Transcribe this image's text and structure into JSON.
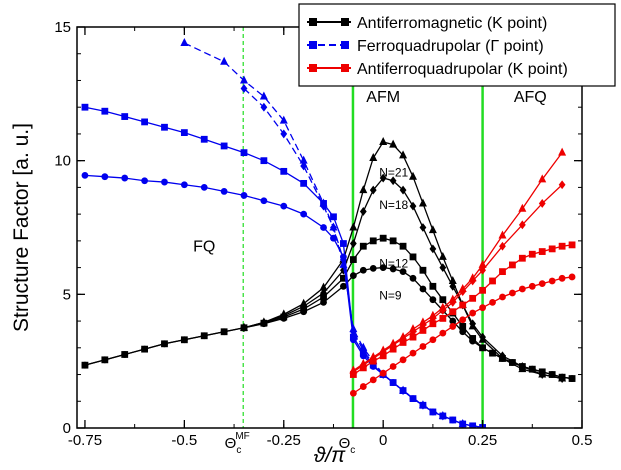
{
  "chart_data": {
    "type": "line",
    "title": "",
    "xlabel": "ϑ/π",
    "ylabel": "Structure Factor [a. u.]",
    "xlim": [
      -0.77,
      0.5
    ],
    "ylim": [
      0,
      15
    ],
    "grid": false,
    "legend_position": "top-right",
    "x_ticks": [
      {
        "value": -0.75,
        "label": "-0.75"
      },
      {
        "value": -0.5,
        "label": "-0.5"
      },
      {
        "value": -0.25,
        "label": "-0.25"
      },
      {
        "value": 0,
        "label": "0"
      },
      {
        "value": 0.25,
        "label": "0.25"
      },
      {
        "value": 0.5,
        "label": "0.5"
      }
    ],
    "x_special_ticks": [
      {
        "value": -0.352,
        "base": "Θ",
        "sub": "c",
        "sup": "MF"
      },
      {
        "value": -0.076,
        "base": "Θ",
        "sub": "c",
        "sup": ""
      }
    ],
    "y_ticks": [
      {
        "value": 0,
        "label": "0"
      },
      {
        "value": 5,
        "label": "5"
      },
      {
        "value": 10,
        "label": "10"
      },
      {
        "value": 15,
        "label": "15"
      }
    ],
    "vlines": [
      {
        "x": -0.352,
        "color": "#22dd22",
        "style": "dashed"
      },
      {
        "x": -0.076,
        "color": "#22dd22",
        "style": "solid"
      },
      {
        "x": 0.25,
        "color": "#22dd22",
        "style": "solid"
      }
    ],
    "regions": [
      {
        "label": "FQ",
        "x": -0.45,
        "y": 6.6
      },
      {
        "label": "AFM",
        "x": 0.0,
        "y": 12.2
      },
      {
        "label": "AFQ",
        "x": 0.37,
        "y": 12.2
      }
    ],
    "n_labels": [
      {
        "label": "N=21",
        "x": -0.01,
        "y": 9.4
      },
      {
        "label": "N=18",
        "x": -0.01,
        "y": 8.2
      },
      {
        "label": "N=12",
        "x": -0.01,
        "y": 6.0
      },
      {
        "label": "N=9",
        "x": -0.01,
        "y": 4.8
      }
    ],
    "legend": [
      {
        "label": "Antiferromagnetic (K point)",
        "color": "#000000",
        "marker": "square",
        "dash": "solid"
      },
      {
        "label": "Ferroquadrupolar (Γ point)",
        "color": "#0000ee",
        "marker": "square",
        "dash": "dashed"
      },
      {
        "label": "Antiferroquadrupolar (K point)",
        "color": "#ee0000",
        "marker": "square",
        "dash": "solid"
      }
    ],
    "series": [
      {
        "group": "afm",
        "color": "#000000",
        "marker": "circle",
        "dash": "solid",
        "x": [
          -0.75,
          -0.7,
          -0.65,
          -0.6,
          -0.55,
          -0.5,
          -0.45,
          -0.4,
          -0.35,
          -0.3,
          -0.25,
          -0.2,
          -0.15,
          -0.1,
          -0.075,
          -0.05,
          -0.025,
          0,
          0.025,
          0.05,
          0.075,
          0.1,
          0.125,
          0.15,
          0.175,
          0.2,
          0.225,
          0.25,
          0.275,
          0.3,
          0.325,
          0.35,
          0.375,
          0.4,
          0.425,
          0.45,
          0.475
        ],
        "values": [
          2.35,
          2.55,
          2.75,
          2.95,
          3.15,
          3.3,
          3.45,
          3.6,
          3.75,
          3.9,
          4.1,
          4.35,
          4.7,
          5.3,
          5.7,
          5.9,
          5.97,
          6.0,
          5.95,
          5.85,
          5.6,
          5.2,
          4.8,
          4.4,
          4.0,
          3.6,
          3.25,
          3.0,
          2.8,
          2.6,
          2.45,
          2.3,
          2.2,
          2.1,
          2.0,
          1.9,
          1.85
        ]
      },
      {
        "group": "afm",
        "color": "#000000",
        "marker": "square",
        "dash": "solid",
        "x": [
          -0.75,
          -0.7,
          -0.65,
          -0.6,
          -0.55,
          -0.5,
          -0.45,
          -0.4,
          -0.35,
          -0.3,
          -0.25,
          -0.2,
          -0.15,
          -0.1,
          -0.075,
          -0.05,
          -0.025,
          0,
          0.025,
          0.05,
          0.075,
          0.1,
          0.125,
          0.15,
          0.175,
          0.2,
          0.225,
          0.25,
          0.275,
          0.3,
          0.325,
          0.35,
          0.375,
          0.4,
          0.425,
          0.45,
          0.475
        ],
        "values": [
          2.35,
          2.55,
          2.75,
          2.95,
          3.15,
          3.3,
          3.45,
          3.6,
          3.75,
          3.92,
          4.15,
          4.45,
          4.9,
          5.6,
          6.3,
          6.8,
          7.0,
          7.1,
          7.0,
          6.8,
          6.4,
          5.9,
          5.3,
          4.8,
          4.3,
          3.8,
          3.35,
          3.0,
          2.8,
          2.6,
          2.45,
          2.3,
          2.2,
          2.1,
          2.0,
          1.9,
          1.85
        ]
      },
      {
        "group": "afm",
        "color": "#000000",
        "marker": "diamond",
        "dash": "solid",
        "x": [
          -0.35,
          -0.3,
          -0.25,
          -0.2,
          -0.15,
          -0.1,
          -0.075,
          -0.05,
          -0.025,
          0,
          0.025,
          0.05,
          0.075,
          0.1,
          0.125,
          0.15,
          0.175,
          0.2,
          0.225,
          0.25,
          0.3,
          0.35,
          0.4,
          0.45
        ],
        "values": [
          3.75,
          3.95,
          4.2,
          4.55,
          5.05,
          5.9,
          6.9,
          8.1,
          8.9,
          9.35,
          9.25,
          8.9,
          8.3,
          7.5,
          6.7,
          6.0,
          5.3,
          4.6,
          3.9,
          3.4,
          2.7,
          2.3,
          2.0,
          1.85
        ]
      },
      {
        "group": "afm",
        "color": "#000000",
        "marker": "triangle",
        "dash": "solid",
        "x": [
          -0.35,
          -0.3,
          -0.25,
          -0.2,
          -0.15,
          -0.1,
          -0.075,
          -0.05,
          -0.025,
          0,
          0.025,
          0.05,
          0.075,
          0.1,
          0.125,
          0.15,
          0.175,
          0.2,
          0.225,
          0.25,
          0.3,
          0.35,
          0.4,
          0.45
        ],
        "values": [
          3.75,
          3.95,
          4.25,
          4.65,
          5.25,
          6.3,
          7.5,
          8.9,
          10.1,
          10.7,
          10.6,
          10.2,
          9.4,
          8.4,
          7.4,
          6.4,
          5.5,
          4.6,
          3.8,
          3.3,
          2.6,
          2.2,
          2.0,
          1.85
        ]
      },
      {
        "group": "fq",
        "color": "#0000ee",
        "marker": "circle",
        "dash": "solid",
        "x": [
          -0.75,
          -0.7,
          -0.65,
          -0.6,
          -0.55,
          -0.5,
          -0.45,
          -0.4,
          -0.35,
          -0.3,
          -0.25,
          -0.2,
          -0.15,
          -0.125,
          -0.1,
          -0.075,
          -0.05,
          -0.025,
          0,
          0.025,
          0.05,
          0.075,
          0.1,
          0.125,
          0.15,
          0.175,
          0.2,
          0.225,
          0.25
        ],
        "values": [
          9.45,
          9.4,
          9.35,
          9.25,
          9.2,
          9.1,
          9.0,
          8.85,
          8.7,
          8.5,
          8.3,
          8.0,
          7.5,
          7.1,
          6.4,
          3.3,
          2.7,
          2.3,
          2.0,
          1.7,
          1.4,
          1.1,
          0.85,
          0.6,
          0.45,
          0.3,
          0.15,
          0.08,
          0.02
        ]
      },
      {
        "group": "fq",
        "color": "#0000ee",
        "marker": "square",
        "dash": "solid",
        "x": [
          -0.75,
          -0.7,
          -0.65,
          -0.6,
          -0.55,
          -0.5,
          -0.45,
          -0.4,
          -0.35,
          -0.3,
          -0.25,
          -0.2,
          -0.15,
          -0.125,
          -0.1,
          -0.075,
          -0.05,
          -0.025,
          0,
          0.025,
          0.05,
          0.075,
          0.1,
          0.125,
          0.15,
          0.175,
          0.2,
          0.225,
          0.25
        ],
        "values": [
          12.0,
          11.85,
          11.65,
          11.45,
          11.25,
          11.05,
          10.8,
          10.55,
          10.3,
          10.0,
          9.6,
          9.15,
          8.4,
          7.9,
          6.9,
          3.4,
          2.8,
          2.35,
          2.0,
          1.7,
          1.4,
          1.1,
          0.85,
          0.6,
          0.45,
          0.3,
          0.15,
          0.08,
          0.02
        ]
      },
      {
        "group": "fq",
        "color": "#0000ee",
        "marker": "diamond",
        "dash": "dashed",
        "x": [
          -0.35,
          -0.3,
          -0.25,
          -0.2,
          -0.15,
          -0.125,
          -0.1,
          -0.075,
          -0.05,
          -0.025,
          0,
          0.05,
          0.1,
          0.15,
          0.2,
          0.25
        ],
        "values": [
          12.7,
          12.0,
          11.0,
          9.8,
          8.3,
          7.5,
          6.3,
          3.6,
          2.9,
          2.4,
          2.0,
          1.4,
          0.85,
          0.45,
          0.15,
          0.02
        ]
      },
      {
        "group": "fq",
        "color": "#0000ee",
        "marker": "triangle",
        "dash": "dashed",
        "x": [
          -0.5,
          -0.4,
          -0.35,
          -0.3,
          -0.25,
          -0.2,
          -0.15,
          -0.125,
          -0.1,
          -0.075,
          -0.05,
          -0.025,
          0,
          0.05,
          0.1,
          0.15,
          0.2,
          0.25
        ],
        "values": [
          14.4,
          13.7,
          13.0,
          12.4,
          11.5,
          10.0,
          8.4,
          7.5,
          6.1,
          3.7,
          3.0,
          2.5,
          2.0,
          1.4,
          0.85,
          0.45,
          0.15,
          0.02
        ]
      },
      {
        "group": "afq",
        "color": "#ee0000",
        "marker": "circle",
        "dash": "solid",
        "x": [
          -0.075,
          -0.05,
          -0.025,
          0,
          0.025,
          0.05,
          0.075,
          0.1,
          0.125,
          0.15,
          0.175,
          0.2,
          0.225,
          0.25,
          0.275,
          0.3,
          0.325,
          0.35,
          0.375,
          0.4,
          0.425,
          0.45,
          0.475
        ],
        "values": [
          1.3,
          1.55,
          1.8,
          2.05,
          2.3,
          2.55,
          2.8,
          3.05,
          3.3,
          3.55,
          3.8,
          4.05,
          4.3,
          4.5,
          4.7,
          4.9,
          5.05,
          5.2,
          5.3,
          5.4,
          5.5,
          5.6,
          5.65
        ]
      },
      {
        "group": "afq",
        "color": "#ee0000",
        "marker": "square",
        "dash": "solid",
        "x": [
          -0.075,
          -0.05,
          -0.025,
          0,
          0.025,
          0.05,
          0.075,
          0.1,
          0.125,
          0.15,
          0.175,
          0.2,
          0.225,
          0.25,
          0.275,
          0.3,
          0.325,
          0.35,
          0.375,
          0.4,
          0.425,
          0.45,
          0.475
        ],
        "values": [
          2.0,
          2.25,
          2.5,
          2.7,
          2.95,
          3.2,
          3.4,
          3.65,
          3.9,
          4.1,
          4.35,
          4.6,
          4.85,
          5.15,
          5.5,
          5.85,
          6.1,
          6.35,
          6.5,
          6.6,
          6.7,
          6.8,
          6.85
        ]
      },
      {
        "group": "afq",
        "color": "#ee0000",
        "marker": "diamond",
        "dash": "solid",
        "x": [
          -0.075,
          -0.05,
          -0.025,
          0,
          0.025,
          0.05,
          0.075,
          0.1,
          0.125,
          0.15,
          0.175,
          0.2,
          0.225,
          0.25,
          0.3,
          0.35,
          0.4,
          0.45
        ],
        "values": [
          2.1,
          2.35,
          2.6,
          2.85,
          3.1,
          3.35,
          3.6,
          3.85,
          4.1,
          4.4,
          4.7,
          5.1,
          5.5,
          5.9,
          6.8,
          7.6,
          8.4,
          9.1
        ]
      },
      {
        "group": "afq",
        "color": "#ee0000",
        "marker": "triangle",
        "dash": "solid",
        "x": [
          -0.075,
          -0.05,
          -0.025,
          0,
          0.025,
          0.05,
          0.075,
          0.1,
          0.125,
          0.15,
          0.175,
          0.2,
          0.225,
          0.25,
          0.3,
          0.35,
          0.4,
          0.45
        ],
        "values": [
          2.15,
          2.4,
          2.65,
          2.9,
          3.15,
          3.4,
          3.7,
          3.95,
          4.2,
          4.5,
          4.8,
          5.2,
          5.6,
          6.1,
          7.2,
          8.2,
          9.3,
          10.3
        ]
      }
    ]
  }
}
